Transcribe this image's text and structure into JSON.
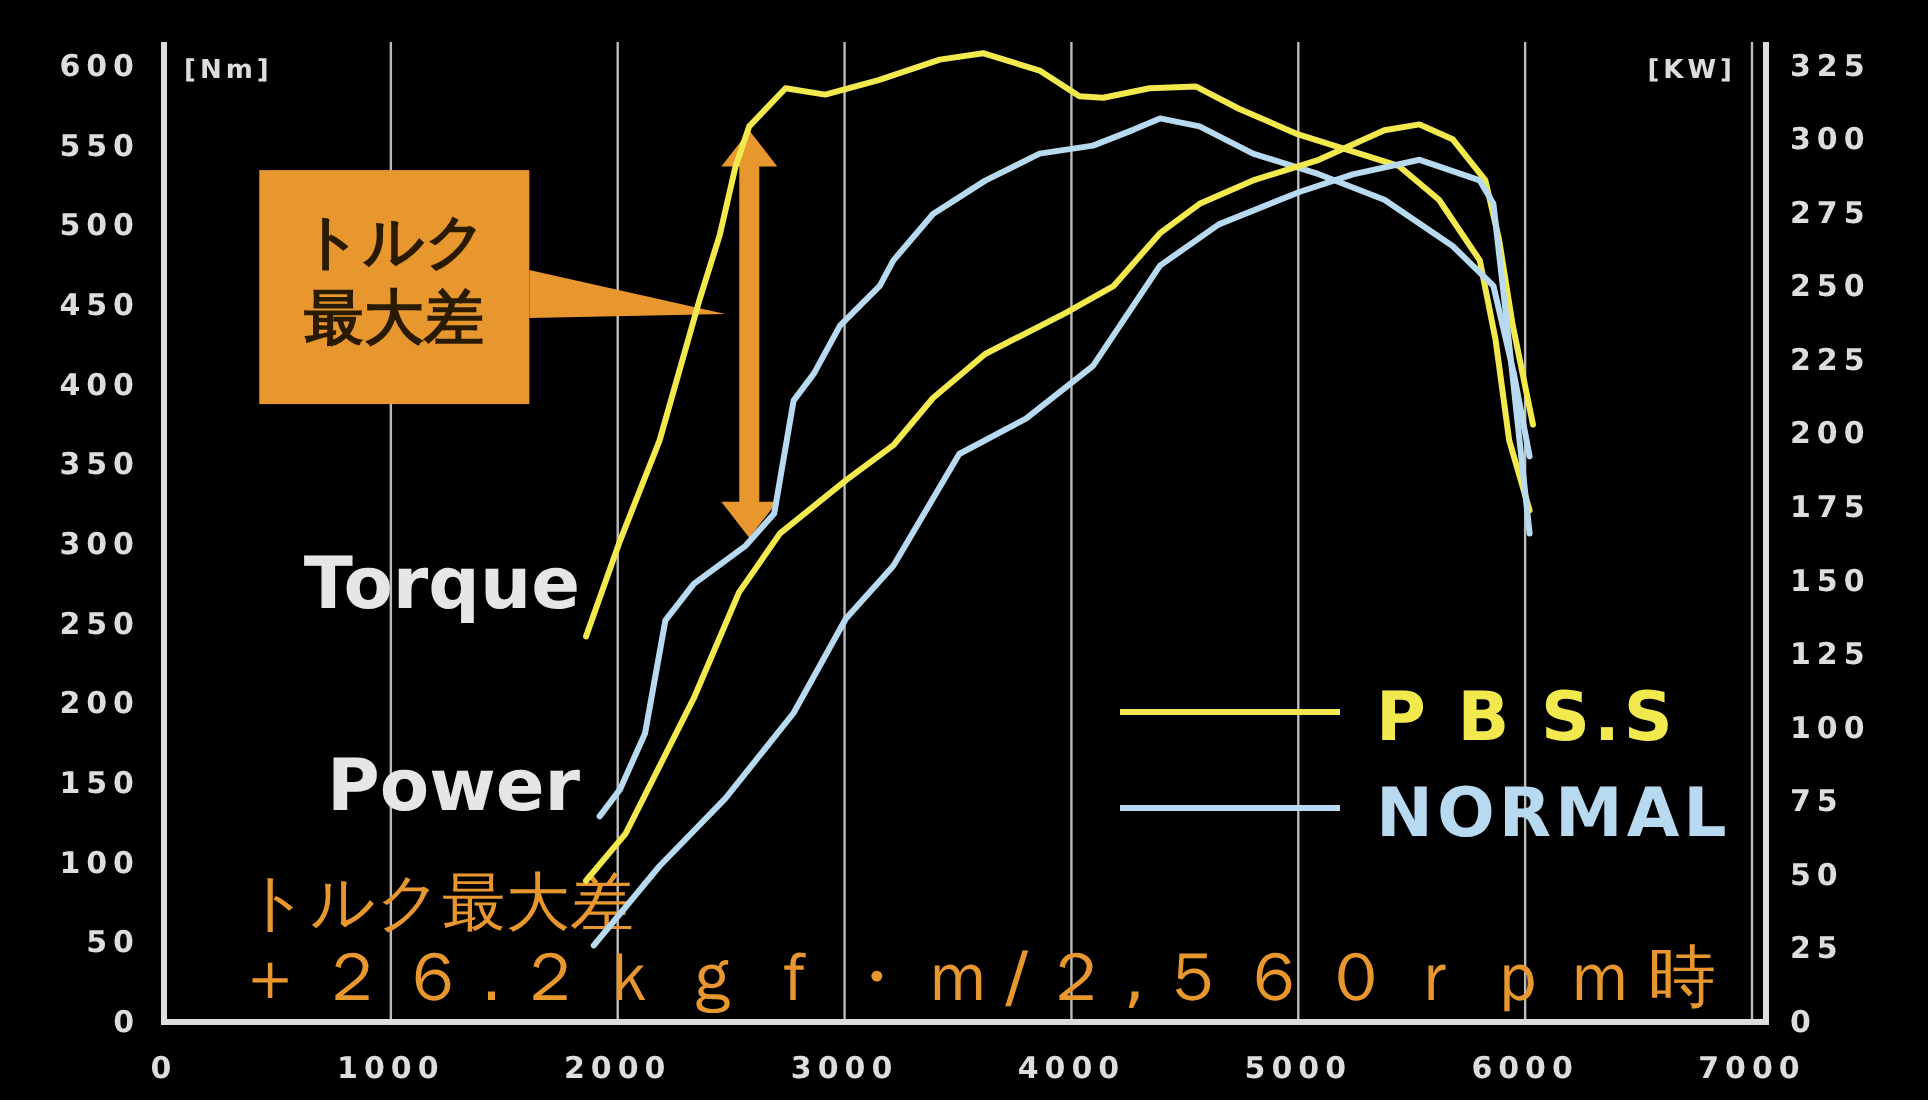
{
  "chart_data": {
    "type": "line",
    "ylabel": "[Nm]",
    "y2label": "[KW]",
    "xlim": [
      0,
      7000
    ],
    "xticks": [
      0,
      1000,
      2000,
      3000,
      4000,
      5000,
      6000,
      7000
    ],
    "ylim": [
      0,
      615
    ],
    "yticks": [
      0,
      50,
      100,
      150,
      200,
      250,
      300,
      350,
      400,
      450,
      500,
      550,
      600
    ],
    "y2lim": [
      0,
      333
    ],
    "y2ticks": [
      0,
      25,
      50,
      75,
      100,
      125,
      150,
      175,
      200,
      225,
      250,
      275,
      300,
      325
    ],
    "grid": "x",
    "legend": "bottom right",
    "line_style": "solid",
    "series": [
      {
        "name": "P B S.S",
        "color": "#f2e94e",
        "x": [
          1860,
          2010,
          2185,
          2360,
          2450,
          2520,
          2580,
          2740,
          2915,
          3150,
          3420,
          3610,
          3860,
          4035,
          4140,
          4345,
          4550,
          4740,
          5000,
          5270,
          5445,
          5620,
          5800,
          5870,
          5930,
          6020
        ],
        "values": [
          242,
          302,
          365,
          453,
          494,
          537,
          562,
          586,
          582,
          591,
          604,
          608,
          597,
          581,
          580,
          586,
          587,
          573,
          557,
          545,
          537,
          516,
          478,
          428,
          365,
          321
        ]
      },
      {
        "name": "NORMAL",
        "color": "#b8daf0",
        "x": [
          1920,
          2010,
          2120,
          2210,
          2335,
          2565,
          2690,
          2775,
          2865,
          2980,
          3155,
          3215,
          3390,
          3620,
          3860,
          4095,
          4275,
          4390,
          4565,
          4800,
          5090,
          5380,
          5680,
          5860,
          5950,
          6020
        ],
        "values": [
          129,
          146,
          181,
          252,
          275,
          299,
          319,
          390,
          407,
          437,
          462,
          478,
          507,
          528,
          545,
          550,
          560,
          567,
          562,
          545,
          532,
          516,
          487,
          462,
          407,
          355
        ]
      },
      {
        "color": "#f2e94e",
        "axis": "y2",
        "x": [
          1860,
          2035,
          2335,
          2535,
          2715,
          3005,
          3215,
          3390,
          3620,
          3975,
          4185,
          4390,
          4565,
          4800,
          5090,
          5380,
          5535,
          5680,
          5825,
          5885,
          5945,
          6035
        ],
        "values": [
          48,
          64,
          110,
          146,
          166,
          184,
          196,
          212,
          227,
          241,
          250,
          268,
          278,
          286,
          293,
          303,
          305,
          300,
          286,
          266,
          237,
          203
        ]
      },
      {
        "color": "#b8daf0",
        "axis": "y2",
        "x": [
          1895,
          2185,
          2475,
          2775,
          3005,
          3215,
          3505,
          3800,
          4095,
          4390,
          4650,
          5005,
          5240,
          5535,
          5800,
          5860,
          5910,
          5975,
          6020
        ],
        "values": [
          26,
          53,
          76,
          105,
          137,
          155,
          193,
          205,
          223,
          257,
          271,
          282,
          288,
          293,
          286,
          278,
          244,
          198,
          166
        ]
      }
    ],
    "annotations": [
      "Torque",
      "Power",
      "トルク最大差",
      "＋２６.２ｋｇｆ・ｍ/２,５６０ｒｐｍ時",
      "トルク最大差"
    ]
  }
}
